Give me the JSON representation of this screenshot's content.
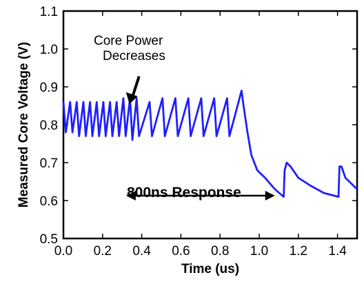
{
  "chart_data": {
    "type": "line",
    "title": "",
    "xlabel": "Time (us)",
    "ylabel": "Measured Core Voltage (V)",
    "xlim": [
      0.0,
      1.5
    ],
    "ylim": [
      0.5,
      1.1
    ],
    "xticks": [
      "0.0",
      "0.2",
      "0.4",
      "0.6",
      "0.8",
      "1.0",
      "1.2",
      "1.4"
    ],
    "yticks": [
      "0.5",
      "0.6",
      "0.7",
      "0.8",
      "0.9",
      "1.0",
      "1.1"
    ],
    "grid": false,
    "color": "#1f1fff",
    "series": [
      {
        "name": "",
        "x": [
          0.0,
          0.012,
          0.034,
          0.046,
          0.068,
          0.08,
          0.102,
          0.114,
          0.136,
          0.148,
          0.17,
          0.182,
          0.204,
          0.216,
          0.238,
          0.25,
          0.272,
          0.284,
          0.306,
          0.318,
          0.34,
          0.352,
          0.374,
          0.386,
          0.44,
          0.452,
          0.506,
          0.518,
          0.572,
          0.584,
          0.638,
          0.65,
          0.704,
          0.716,
          0.77,
          0.782,
          0.836,
          0.848,
          0.91,
          0.92,
          0.94,
          0.96,
          0.99,
          1.03,
          1.08,
          1.125,
          1.13,
          1.14,
          1.16,
          1.2,
          1.26,
          1.33,
          1.405,
          1.41,
          1.42,
          1.44,
          1.48,
          1.5
        ],
        "y": [
          0.86,
          0.78,
          0.86,
          0.78,
          0.86,
          0.77,
          0.86,
          0.77,
          0.86,
          0.77,
          0.86,
          0.77,
          0.86,
          0.77,
          0.86,
          0.77,
          0.86,
          0.77,
          0.87,
          0.77,
          0.87,
          0.76,
          0.87,
          0.77,
          0.86,
          0.77,
          0.87,
          0.77,
          0.87,
          0.77,
          0.87,
          0.77,
          0.87,
          0.77,
          0.87,
          0.77,
          0.87,
          0.77,
          0.89,
          0.85,
          0.78,
          0.72,
          0.68,
          0.66,
          0.63,
          0.61,
          0.68,
          0.7,
          0.69,
          0.66,
          0.64,
          0.62,
          0.61,
          0.69,
          0.69,
          0.66,
          0.64,
          0.63
        ]
      }
    ],
    "annotations": [
      {
        "text_line1": "Core Power",
        "text_line2": "Decreases",
        "arrow_to": [
          0.33,
          0.855
        ]
      },
      {
        "text": "800ns Response",
        "arrow_from_x": 0.32,
        "arrow_to_x": 1.08,
        "y": 0.613
      }
    ]
  }
}
